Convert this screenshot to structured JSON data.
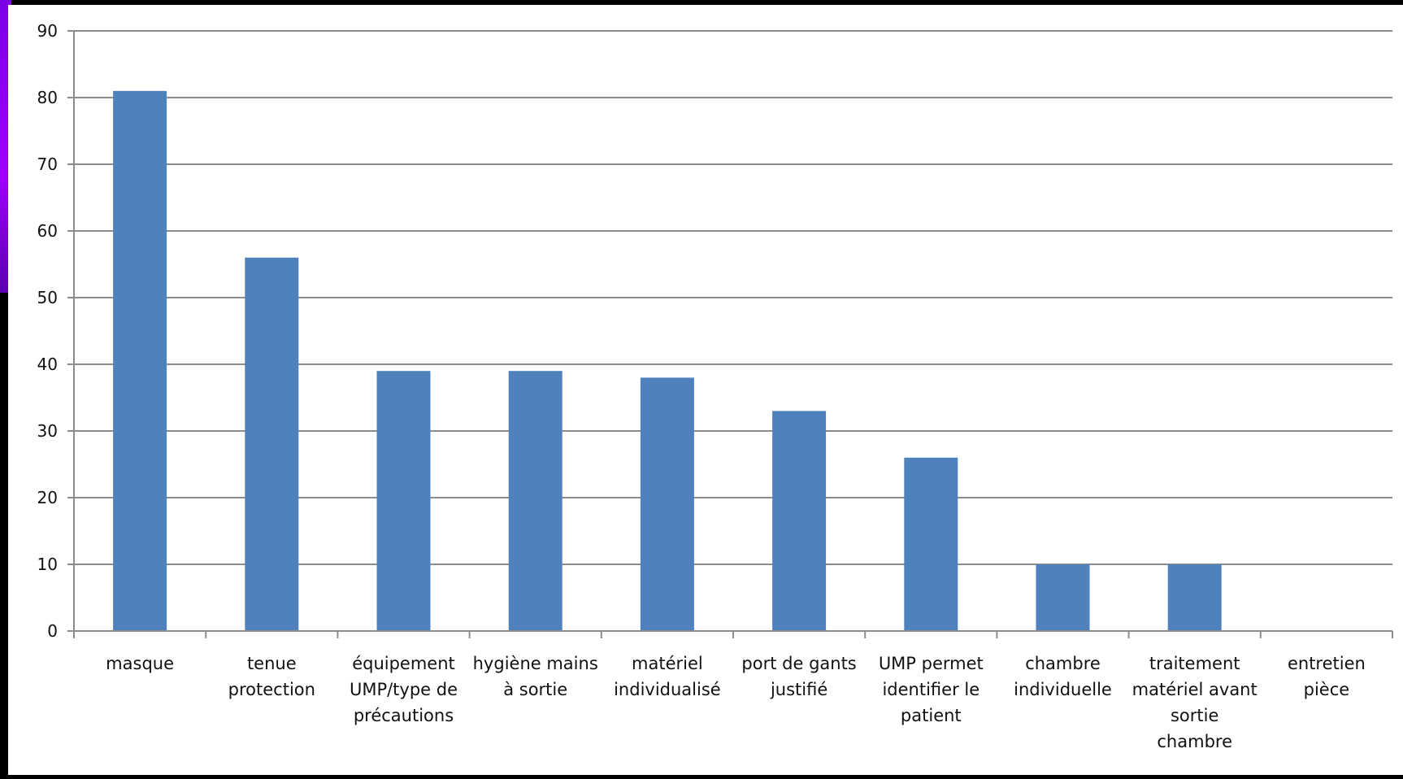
{
  "chart_data": {
    "type": "bar",
    "title": "",
    "xlabel": "",
    "ylabel": "",
    "ylim": [
      0,
      90
    ],
    "yticks": [
      0,
      10,
      20,
      30,
      40,
      50,
      60,
      70,
      80,
      90
    ],
    "grid": true,
    "legend": "none",
    "bar_color": "#4f81bd",
    "categories": [
      "masque",
      "tenue protection",
      "équipement UMP/type de précautions",
      "hygiène mains à sortie",
      "matériel individualisé",
      "port de gants justifié",
      "UMP permet identifier le patient",
      "chambre individuelle",
      "traitement matériel avant sortie chambre",
      "entretien pièce"
    ],
    "category_label_lines": [
      [
        "masque"
      ],
      [
        "tenue",
        "protection"
      ],
      [
        "équipement",
        "UMP/type de",
        "précautions"
      ],
      [
        "hygiène mains",
        "à sortie"
      ],
      [
        "matériel",
        "individualisé"
      ],
      [
        "port de gants",
        "justifié"
      ],
      [
        "UMP permet",
        "identifier le",
        "patient"
      ],
      [
        "chambre",
        "individuelle"
      ],
      [
        "traitement",
        "matériel avant",
        "sortie",
        "chambre"
      ],
      [
        "entretien",
        "pièce"
      ]
    ],
    "values": [
      81,
      56,
      39,
      39,
      38,
      33,
      26,
      10,
      10,
      0
    ]
  }
}
